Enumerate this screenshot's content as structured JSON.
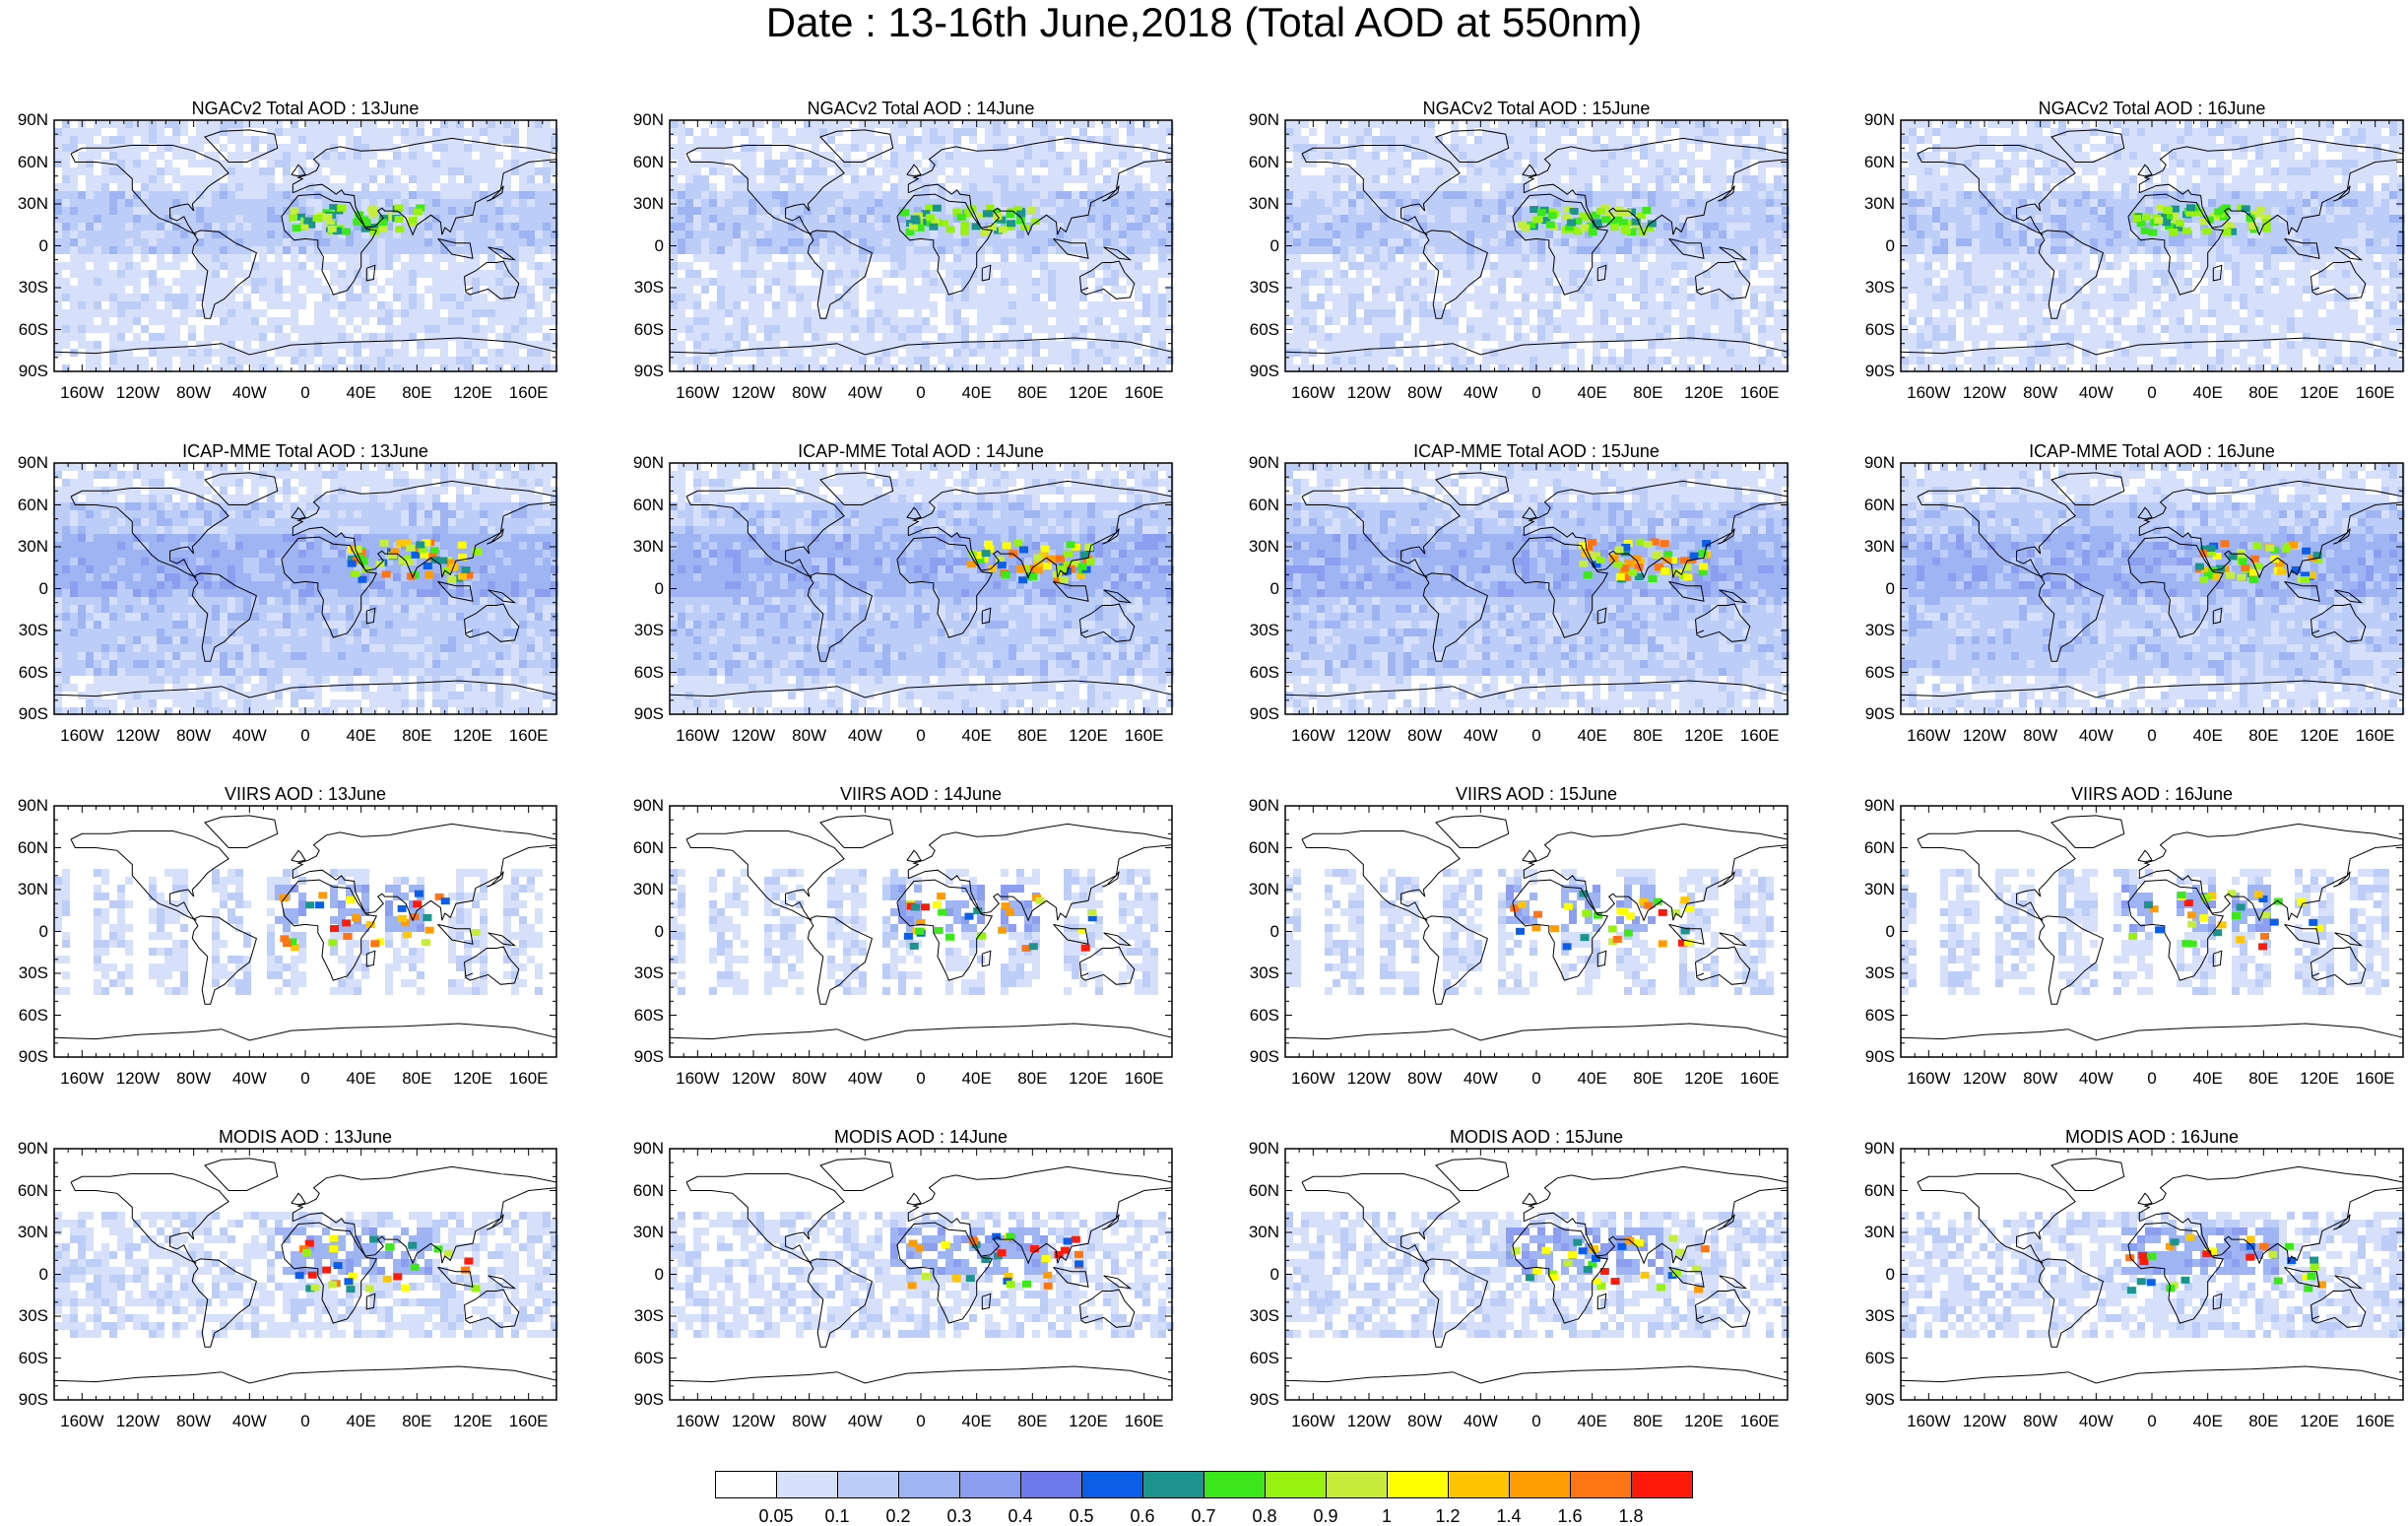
{
  "title": "Date : 13-16th June,2018 (Total AOD at 550nm)",
  "panels": [
    {
      "title": "NGACv2 Total AOD : 13June",
      "kind": "model",
      "src": 0
    },
    {
      "title": "NGACv2 Total AOD : 14June",
      "kind": "model",
      "src": 0
    },
    {
      "title": "NGACv2 Total AOD : 15June",
      "kind": "model",
      "src": 0
    },
    {
      "title": "NGACv2 Total AOD : 16June",
      "kind": "model",
      "src": 0
    },
    {
      "title": "ICAP-MME Total AOD : 13June",
      "kind": "model",
      "src": 1
    },
    {
      "title": "ICAP-MME Total AOD : 14June",
      "kind": "model",
      "src": 1
    },
    {
      "title": "ICAP-MME Total AOD : 15June",
      "kind": "model",
      "src": 1
    },
    {
      "title": "ICAP-MME Total AOD : 16June",
      "kind": "model",
      "src": 1
    },
    {
      "title": "VIIRS AOD : 13June",
      "kind": "sat",
      "src": 2
    },
    {
      "title": "VIIRS AOD : 14June",
      "kind": "sat",
      "src": 2
    },
    {
      "title": "VIIRS AOD : 15June",
      "kind": "sat",
      "src": 2
    },
    {
      "title": "VIIRS AOD : 16June",
      "kind": "sat",
      "src": 2
    },
    {
      "title": "MODIS AOD : 13June",
      "kind": "sat",
      "src": 3
    },
    {
      "title": "MODIS AOD : 14June",
      "kind": "sat",
      "src": 3
    },
    {
      "title": "MODIS AOD : 15June",
      "kind": "sat",
      "src": 3
    },
    {
      "title": "MODIS AOD : 16June",
      "kind": "sat",
      "src": 3
    }
  ],
  "lat_labels": [
    "90N",
    "60N",
    "30N",
    "0",
    "30S",
    "60S",
    "90S"
  ],
  "lon_labels": [
    "160W",
    "120W",
    "80W",
    "40W",
    "0",
    "40E",
    "80E",
    "120E",
    "160E"
  ],
  "lon_values": [
    -160,
    -120,
    -80,
    -40,
    0,
    40,
    80,
    120,
    160
  ],
  "lat_values": [
    90,
    60,
    30,
    0,
    -30,
    -60,
    -90
  ],
  "colorbar": {
    "labels": [
      "0.05",
      "0.1",
      "0.2",
      "0.3",
      "0.4",
      "0.5",
      "0.6",
      "0.7",
      "0.8",
      "0.9",
      "1",
      "1.2",
      "1.4",
      "1.6",
      "1.8"
    ],
    "colors": [
      "#ffffff",
      "#d6e0fb",
      "#bccdf8",
      "#9fb4f3",
      "#8b9eef",
      "#6e79ea",
      "#0b5ee8",
      "#1a948c",
      "#3de81a",
      "#98f20f",
      "#c4ee39",
      "#ffff00",
      "#ffc600",
      "#ff9d00",
      "#ff7414",
      "#ff1a0a"
    ]
  }
}
